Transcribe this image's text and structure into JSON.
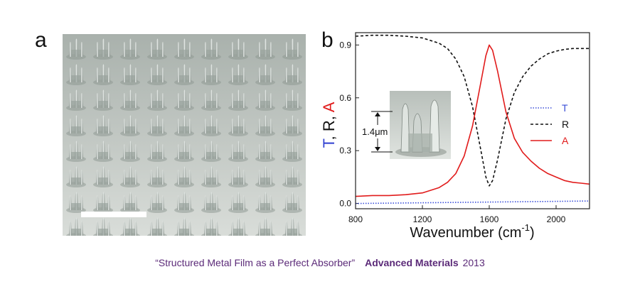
{
  "panels": {
    "a": "a",
    "b": "b"
  },
  "caption": {
    "title": "“Structured Metal Film as a Perfect Absorber”",
    "journal": "Advanced Materials",
    "year": "2013"
  },
  "chart_data": {
    "type": "line",
    "xlabel": "Wavenumber (cm",
    "xlabel_sup": "-1",
    "xlabel_close": ")",
    "ylabel_parts": [
      {
        "text": "T",
        "color": "#2f3fd0"
      },
      {
        "text": ", R, ",
        "color": "#111111"
      },
      {
        "text": "A",
        "color": "#e11b1b"
      }
    ],
    "xlim": [
      800,
      2200
    ],
    "ylim": [
      -0.03,
      0.97
    ],
    "xticks": [
      800,
      1200,
      1600,
      2000
    ],
    "yticks": [
      0.0,
      0.3,
      0.6,
      0.9
    ],
    "ytick_labels": [
      "0.0",
      "0.3",
      "0.6",
      "0.9"
    ],
    "legend_position": "right",
    "inset_annotation": "1.4μm",
    "series": [
      {
        "name": "T",
        "color": "#3b4fd8",
        "style": "dotted",
        "x": [
          800,
          1000,
          1200,
          1400,
          1600,
          1800,
          2000,
          2200
        ],
        "y": [
          0.0,
          0.002,
          0.004,
          0.006,
          0.008,
          0.01,
          0.012,
          0.014
        ]
      },
      {
        "name": "R",
        "color": "#111111",
        "style": "dashed",
        "x": [
          800,
          900,
          1000,
          1100,
          1200,
          1300,
          1350,
          1400,
          1450,
          1500,
          1550,
          1580,
          1600,
          1620,
          1650,
          1700,
          1750,
          1800,
          1850,
          1900,
          1950,
          2000,
          2050,
          2100,
          2150,
          2200
        ],
        "y": [
          0.95,
          0.955,
          0.955,
          0.95,
          0.94,
          0.91,
          0.88,
          0.82,
          0.72,
          0.55,
          0.3,
          0.15,
          0.1,
          0.13,
          0.25,
          0.48,
          0.63,
          0.72,
          0.78,
          0.82,
          0.85,
          0.865,
          0.875,
          0.88,
          0.88,
          0.88
        ]
      },
      {
        "name": "A",
        "color": "#e11b1b",
        "style": "solid",
        "x": [
          800,
          900,
          1000,
          1100,
          1200,
          1300,
          1350,
          1400,
          1450,
          1500,
          1550,
          1580,
          1600,
          1620,
          1650,
          1700,
          1750,
          1800,
          1850,
          1900,
          1950,
          2000,
          2050,
          2100,
          2150,
          2200
        ],
        "y": [
          0.04,
          0.045,
          0.045,
          0.05,
          0.06,
          0.09,
          0.12,
          0.17,
          0.27,
          0.44,
          0.69,
          0.84,
          0.9,
          0.87,
          0.75,
          0.52,
          0.37,
          0.29,
          0.24,
          0.2,
          0.17,
          0.15,
          0.13,
          0.12,
          0.115,
          0.11
        ]
      }
    ]
  }
}
